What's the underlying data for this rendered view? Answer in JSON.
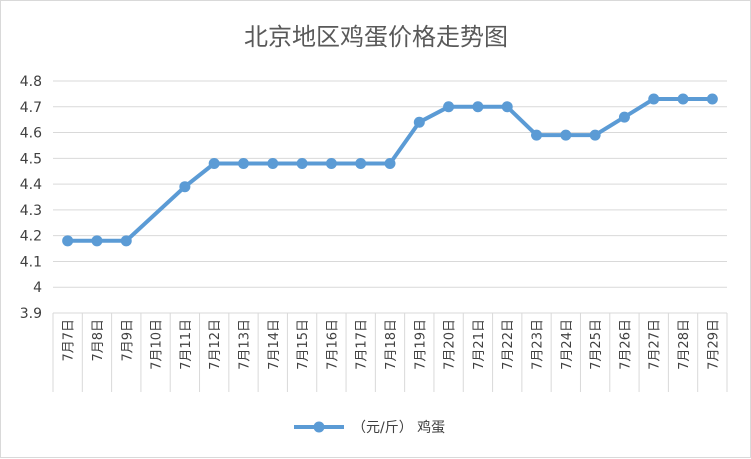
{
  "chart_data": {
    "type": "line",
    "title": "北京地区鸡蛋价格走势图",
    "categories": [
      "7月7日",
      "7月8日",
      "7月9日",
      "7月10日",
      "7月11日",
      "7月12日",
      "7月13日",
      "7月14日",
      "7月15日",
      "7月16日",
      "7月17日",
      "7月18日",
      "7月19日",
      "7月20日",
      "7月21日",
      "7月22日",
      "7月23日",
      "7月24日",
      "7月25日",
      "7月26日",
      "7月27日",
      "7月28日",
      "7月29日"
    ],
    "series": [
      {
        "name": "（元/斤） 鸡蛋",
        "values": [
          4.18,
          4.18,
          4.18,
          null,
          4.39,
          4.48,
          4.48,
          4.48,
          4.48,
          4.48,
          4.48,
          4.48,
          4.64,
          4.7,
          4.7,
          4.7,
          4.59,
          4.59,
          4.59,
          4.66,
          4.73,
          4.73,
          4.73
        ],
        "color": "#5b9bd5"
      }
    ],
    "ylim": [
      3.9,
      4.8
    ],
    "yticks": [
      "3.9",
      "4",
      "4.1",
      "4.2",
      "4.3",
      "4.4",
      "4.5",
      "4.6",
      "4.7",
      "4.8"
    ],
    "xlabel": "",
    "ylabel": "",
    "grid": "horizontal",
    "legend": "bottom"
  }
}
